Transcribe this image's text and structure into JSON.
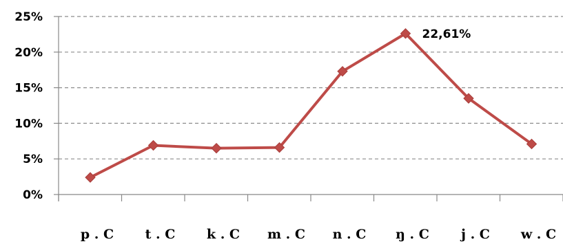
{
  "chart_data": {
    "type": "line",
    "categories": [
      "p . C",
      "t . C",
      "k . C",
      "m . C",
      "n . C",
      "ŋ . C",
      "j . C",
      "w . C"
    ],
    "series": [
      {
        "values": [
          2.4,
          6.9,
          6.5,
          6.6,
          17.3,
          22.61,
          13.5,
          7.1
        ]
      }
    ],
    "ylim": [
      0,
      25
    ],
    "yticks": [
      0,
      5,
      10,
      15,
      20,
      25
    ],
    "ytick_labels": [
      "0%",
      "5%",
      "10%",
      "15%",
      "20%",
      "25%"
    ],
    "grid": "horizontal dashed",
    "data_labels": [
      {
        "index": 5,
        "text": "22,61%"
      }
    ],
    "line_color": "#be4b48",
    "title": "",
    "xlabel": "",
    "ylabel": ""
  }
}
